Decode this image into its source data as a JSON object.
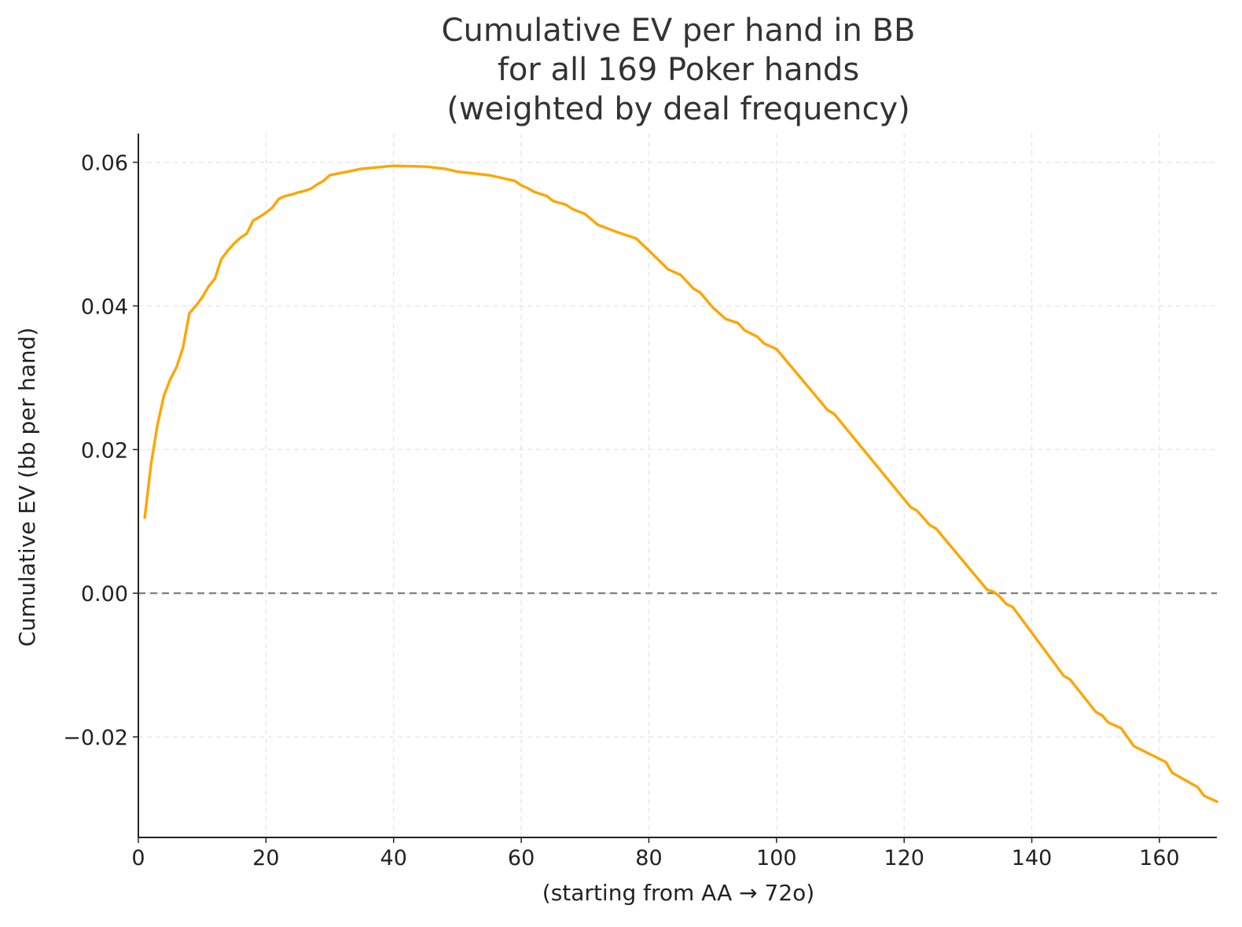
{
  "chart_data": {
    "type": "line",
    "title": [
      "Cumulative EV per hand in BB",
      "for all 169 Poker hands",
      "(weighted by deal frequency)"
    ],
    "xlabel": "(starting from AA → 72o)",
    "ylabel": "Cumulative EV (bb per hand)",
    "xlim": [
      0,
      169
    ],
    "ylim": [
      -0.034,
      0.064
    ],
    "xticks": [
      0,
      20,
      40,
      60,
      80,
      100,
      120,
      140,
      160
    ],
    "xtick_labels": [
      "0",
      "20",
      "40",
      "60",
      "80",
      "100",
      "120",
      "140",
      "160"
    ],
    "yticks": [
      -0.02,
      0.0,
      0.02,
      0.04,
      0.06
    ],
    "ytick_labels": [
      "−0.02",
      "0.00",
      "0.02",
      "0.04",
      "0.06"
    ],
    "grid": true,
    "reference_line": {
      "y": 0.0,
      "style": "dashed",
      "color": "#808080"
    },
    "series": [
      {
        "color": "#FFA500",
        "x": [
          1,
          2,
          3,
          4,
          5,
          6,
          7,
          8,
          9,
          10,
          11,
          12,
          13,
          14,
          15,
          16,
          17,
          18,
          19,
          20,
          21,
          22,
          23,
          24,
          25,
          26,
          27,
          28,
          29,
          30,
          35,
          40,
          45,
          48,
          50,
          55,
          59,
          60,
          61,
          62,
          64,
          65,
          67,
          68,
          70,
          72,
          75,
          78,
          80,
          83,
          85,
          87,
          88,
          90,
          92,
          94,
          95,
          97,
          98,
          100,
          108,
          109,
          121,
          122,
          124,
          125,
          133,
          134,
          135,
          136,
          137,
          145,
          146,
          150,
          151,
          152,
          154,
          156,
          161,
          162,
          166,
          167,
          169
        ],
        "y": [
          0.0105,
          0.018,
          0.0235,
          0.0275,
          0.0298,
          0.0315,
          0.0342,
          0.039,
          0.04,
          0.0412,
          0.0427,
          0.0438,
          0.0465,
          0.0477,
          0.0487,
          0.0495,
          0.0501,
          0.0519,
          0.0524,
          0.053,
          0.0537,
          0.0549,
          0.0553,
          0.0555,
          0.0558,
          0.056,
          0.0563,
          0.0569,
          0.0574,
          0.0582,
          0.0591,
          0.0595,
          0.0594,
          0.0591,
          0.0587,
          0.0582,
          0.0574,
          0.0568,
          0.0564,
          0.0559,
          0.0553,
          0.0546,
          0.0541,
          0.0535,
          0.0528,
          0.0513,
          0.0503,
          0.0494,
          0.0477,
          0.0451,
          0.0443,
          0.0424,
          0.0419,
          0.0398,
          0.0382,
          0.0376,
          0.0366,
          0.0357,
          0.0348,
          0.034,
          0.0255,
          0.025,
          0.012,
          0.0115,
          0.0095,
          0.009,
          0.0005,
          0.0002,
          -0.0005,
          -0.0015,
          -0.0019,
          -0.0115,
          -0.012,
          -0.0165,
          -0.017,
          -0.018,
          -0.0188,
          -0.0213,
          -0.0235,
          -0.025,
          -0.027,
          -0.0282,
          -0.029
        ]
      }
    ]
  }
}
